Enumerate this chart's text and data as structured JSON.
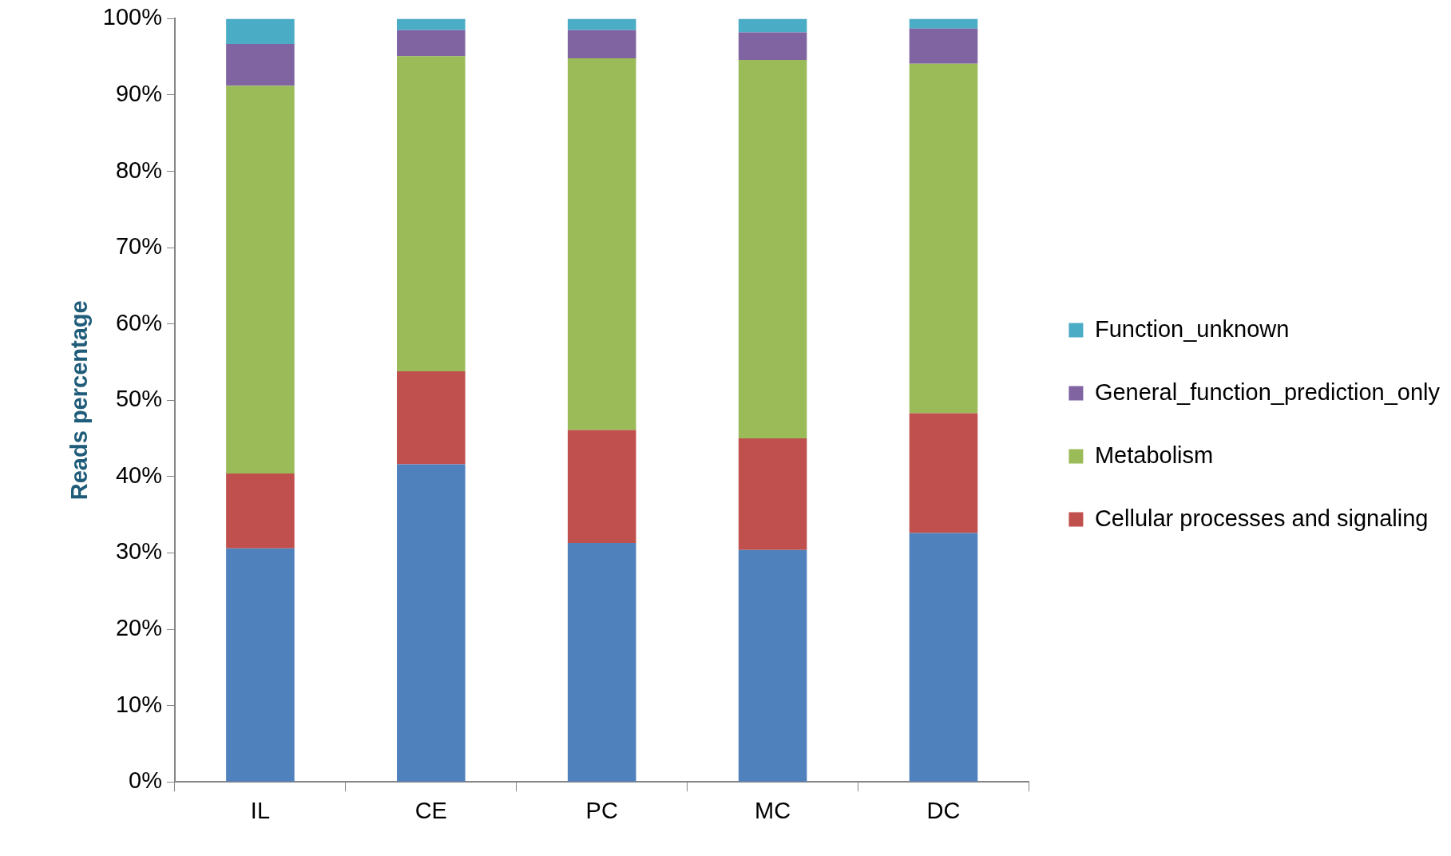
{
  "chart_data": {
    "type": "bar",
    "stacked": true,
    "ylabel": "Reads percentage",
    "categories": [
      "IL",
      "CE",
      "PC",
      "MC",
      "DC"
    ],
    "series": [
      {
        "color": "#4f81bd",
        "values": [
          30.6,
          41.6,
          31.3,
          30.4,
          32.6
        ]
      },
      {
        "name": "Cellular processes and signaling",
        "color": "#c0504d",
        "values": [
          9.8,
          12.2,
          14.8,
          14.6,
          15.7
        ]
      },
      {
        "name": "Metabolism",
        "color": "#9bbb59",
        "values": [
          50.8,
          41.3,
          48.7,
          49.6,
          45.8
        ]
      },
      {
        "name": "General_function_prediction_only",
        "color": "#8064a2",
        "values": [
          5.5,
          3.4,
          3.7,
          3.6,
          4.6
        ]
      },
      {
        "name": "Function_unknown",
        "color": "#4bacc6",
        "values": [
          3.3,
          1.5,
          1.5,
          1.8,
          1.3
        ]
      }
    ],
    "ylim": [
      0,
      100
    ],
    "yticks": [
      {
        "value": 0,
        "label": "0%"
      },
      {
        "value": 10,
        "label": "10%"
      },
      {
        "value": 20,
        "label": "20%"
      },
      {
        "value": 30,
        "label": "30%"
      },
      {
        "value": 40,
        "label": "40%"
      },
      {
        "value": 50,
        "label": "50%"
      },
      {
        "value": 60,
        "label": "60%"
      },
      {
        "value": 70,
        "label": "70%"
      },
      {
        "value": 80,
        "label": "80%"
      },
      {
        "value": 90,
        "label": "90%"
      },
      {
        "value": 100,
        "label": "100%"
      }
    ],
    "legend": "right"
  }
}
